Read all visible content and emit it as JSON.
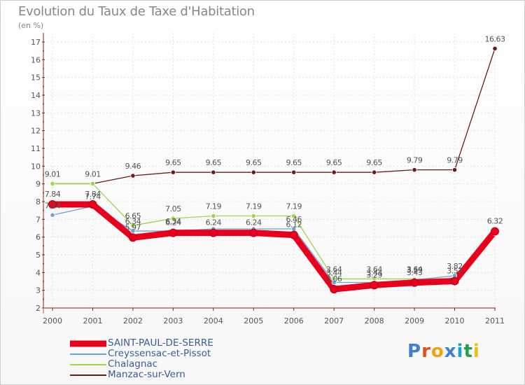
{
  "header": {
    "title": "Evolution du Taux de Taxe d'Habitation",
    "unit": "(en %)"
  },
  "chart_data": {
    "type": "line",
    "title": "Evolution du Taux de Taxe d'Habitation",
    "ylabel": "(en %)",
    "xlabel": "",
    "x": [
      "2000",
      "2001",
      "2002",
      "2003",
      "2004",
      "2005",
      "2006",
      "2007",
      "2008",
      "2009",
      "2010",
      "2011"
    ],
    "ylim": [
      2,
      17
    ],
    "yticks": [
      2,
      3,
      4,
      5,
      6,
      7,
      8,
      9,
      10,
      11,
      12,
      13,
      14,
      15,
      16,
      17
    ],
    "series": [
      {
        "name": "SAINT-PAUL-DE-SERRE",
        "color": "#e8001c",
        "values": [
          7.84,
          7.84,
          5.97,
          6.24,
          6.24,
          6.24,
          6.12,
          3.06,
          3.29,
          3.43,
          3.52,
          6.32
        ],
        "labels": [
          "7.84",
          "7.84",
          "5.97",
          "6.24",
          "6.24",
          "6.24",
          "6.12",
          "3.06",
          "3.29",
          "3.43",
          "3.52",
          "6.32"
        ]
      },
      {
        "name": "Creyssensac-et-Pissot",
        "color": "#6fa0d8",
        "values": [
          7.24,
          7.74,
          6.34,
          6.34,
          6.46,
          6.46,
          6.46,
          3.44,
          3.44,
          3.59,
          3.82,
          6.35
        ],
        "labels": [
          "7.24",
          "7.74",
          "6.34",
          "6.34",
          "",
          "",
          "6.46",
          "3.44",
          "3.44",
          "3.59",
          "3.82",
          ""
        ]
      },
      {
        "name": "Chalagnac",
        "color": "#9ad84a",
        "values": [
          9.01,
          9.01,
          6.65,
          7.05,
          7.19,
          7.19,
          7.19,
          3.64,
          3.64,
          3.64,
          3.64,
          6.2
        ],
        "labels": [
          "",
          "",
          "6.65",
          "7.05",
          "7.19",
          "7.19",
          "7.19",
          "3.64",
          "3.64",
          "3.64",
          "",
          ""
        ]
      },
      {
        "name": "Manzac-sur-Vern",
        "color": "#6b1a1a",
        "values": [
          9.01,
          9.01,
          9.46,
          9.65,
          9.65,
          9.65,
          9.65,
          9.65,
          9.65,
          9.79,
          9.79,
          16.63
        ],
        "labels": [
          "9.01",
          "9.01",
          "9.46",
          "9.65",
          "9.65",
          "9.65",
          "9.65",
          "9.65",
          "9.65",
          "9.79",
          "9.79",
          "16.63"
        ]
      }
    ]
  },
  "legend": {
    "items": [
      "SAINT-PAUL-DE-SERRE",
      "Creyssensac-et-Pissot",
      "Chalagnac",
      "Manzac-sur-Vern"
    ]
  },
  "logo": {
    "text": "Proxiti",
    "colors": [
      "#3f7fd0",
      "#e04e1c",
      "#f2a20c",
      "#3f7fd0",
      "#1aa1d6",
      "#2a9d4b",
      "#e8c20a"
    ]
  }
}
